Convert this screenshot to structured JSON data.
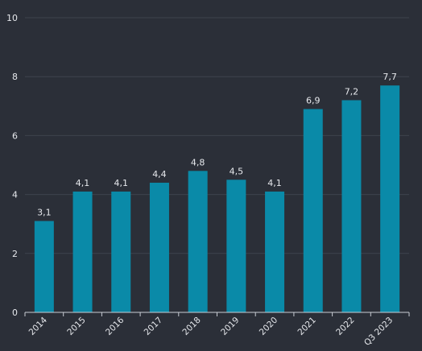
{
  "chart_data": {
    "type": "bar",
    "categories": [
      "2014",
      "2015",
      "2016",
      "2017",
      "2018",
      "2019",
      "2020",
      "2021",
      "2022",
      "Q3 2023"
    ],
    "values": [
      3.1,
      4.1,
      4.1,
      4.4,
      4.8,
      4.5,
      4.1,
      6.9,
      7.2,
      7.7
    ],
    "value_labels": [
      "3,1",
      "4,1",
      "4,1",
      "4,4",
      "4,8",
      "4,5",
      "4,1",
      "6,9",
      "7,2",
      "7,7"
    ],
    "title": "",
    "xlabel": "",
    "ylabel": "",
    "ylim": [
      0,
      10
    ],
    "yticks": [
      0,
      2,
      4,
      6,
      8,
      10
    ],
    "ytick_labels": [
      "0",
      "2",
      "4",
      "6",
      "8",
      "10"
    ],
    "grid": true,
    "legend": "none",
    "colors": {
      "background": "#2b2f38",
      "bar": "#0a8aa8",
      "grid": "#3e434d",
      "axis": "#c8ccd3",
      "text": "#e6e8ec"
    }
  }
}
